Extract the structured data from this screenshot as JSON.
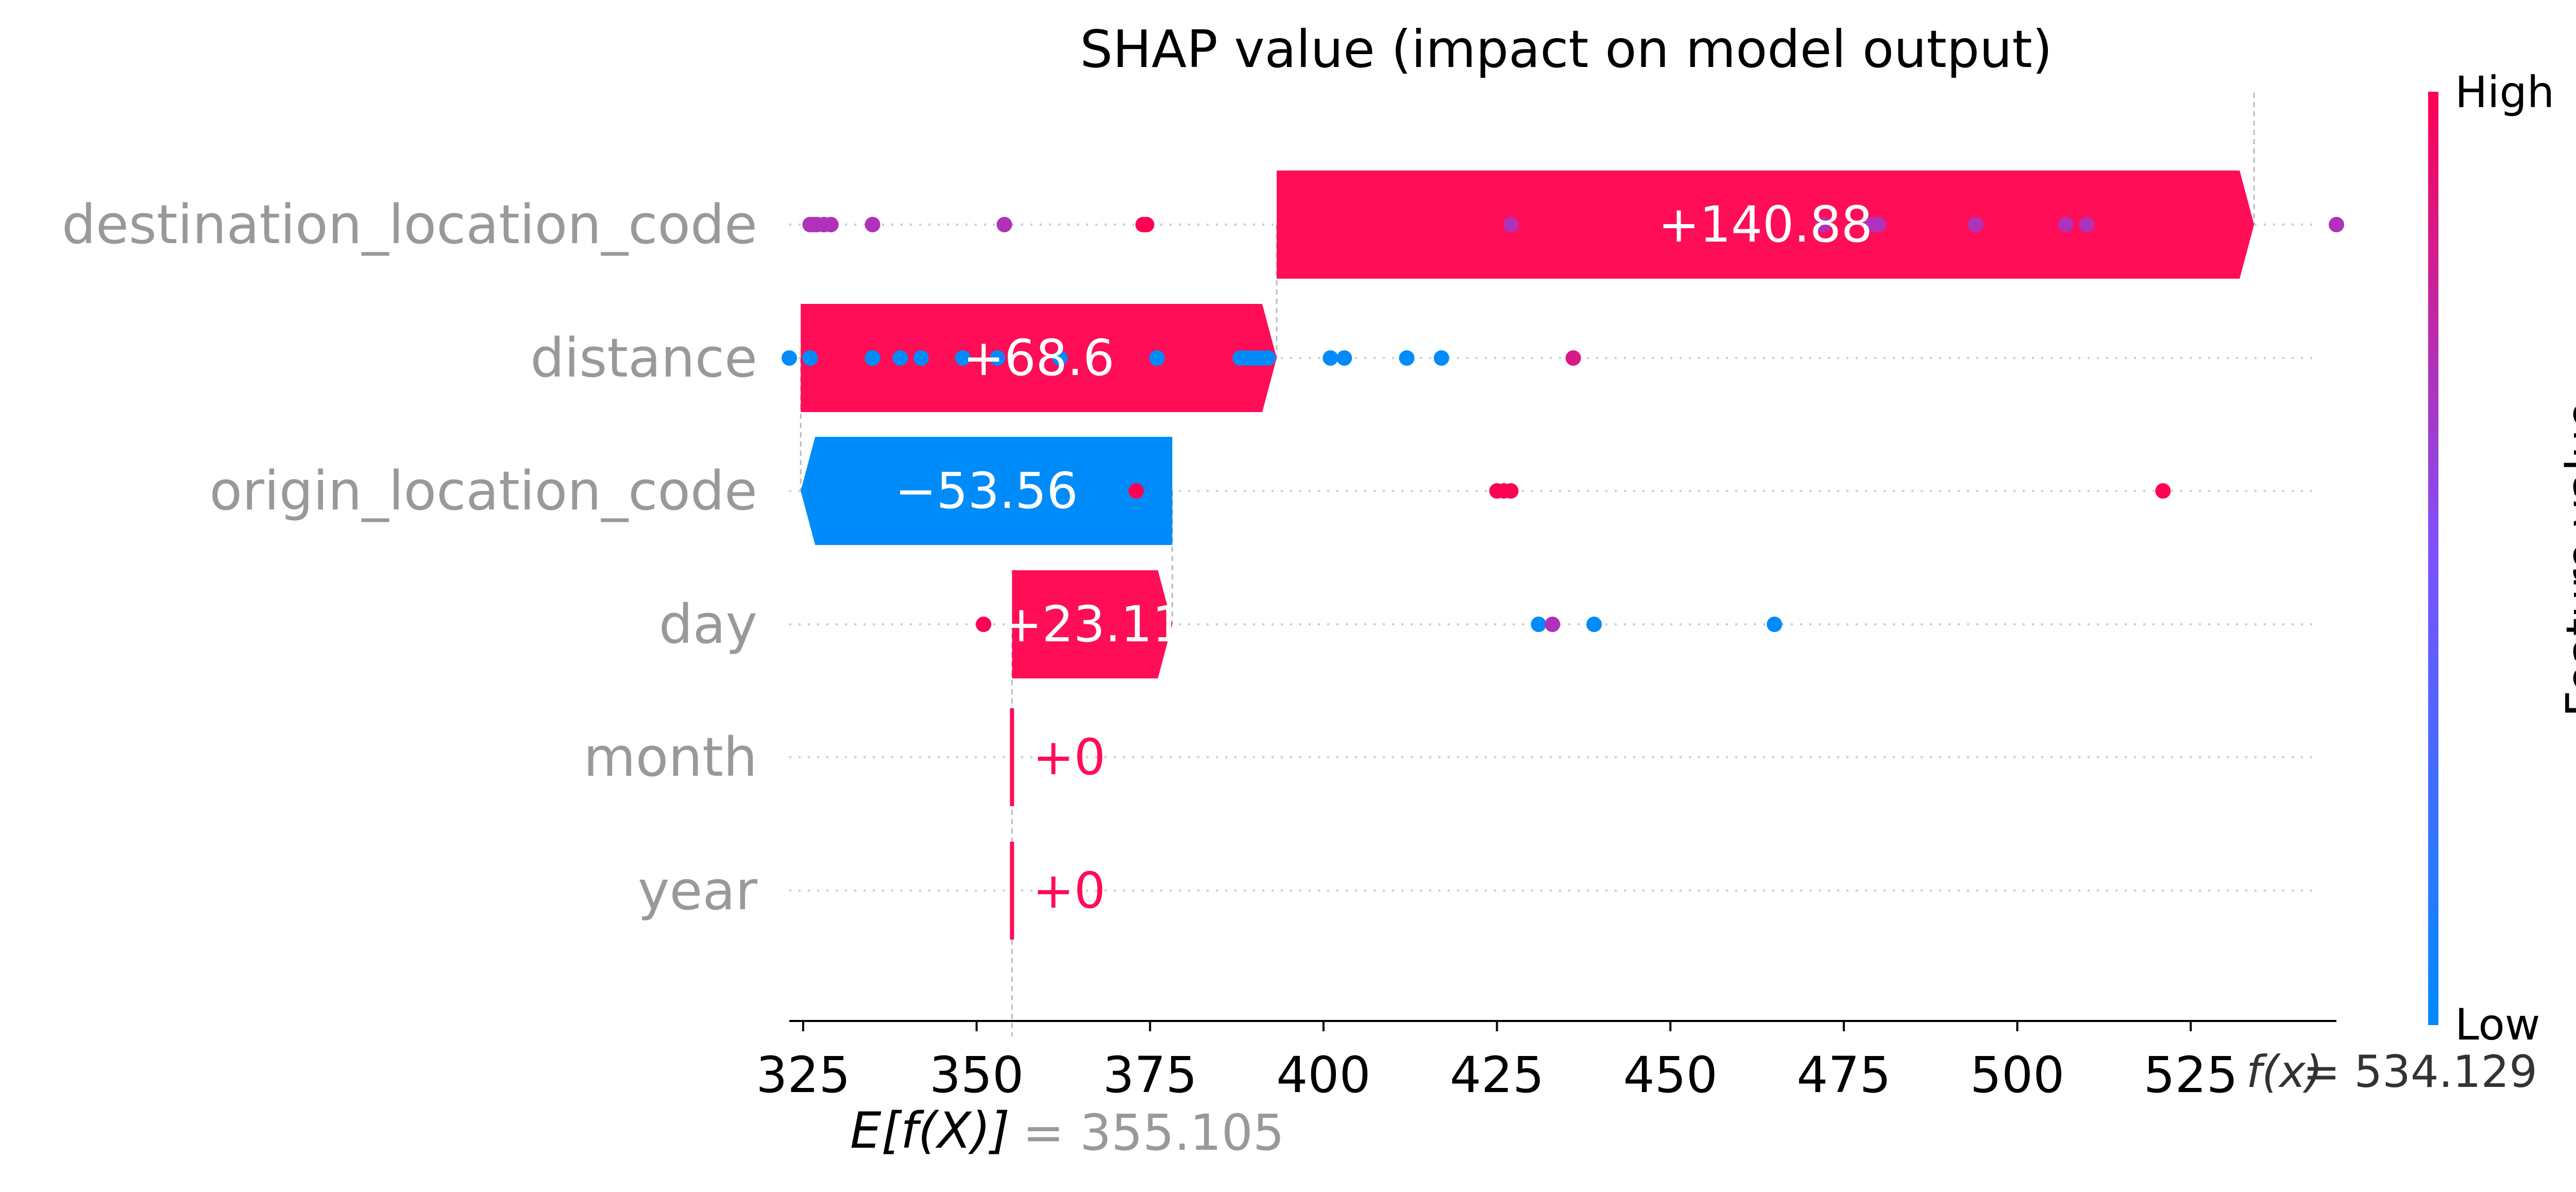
{
  "chart_data": {
    "type": "waterfall",
    "title": "SHAP value (impact on model output)",
    "xlim": [
      323,
      546
    ],
    "x_ticks": [
      "325",
      "350",
      "375",
      "400",
      "425",
      "450",
      "475",
      "500",
      "525"
    ],
    "x_tick_values": [
      325,
      350,
      375,
      400,
      425,
      450,
      475,
      500,
      525
    ],
    "features": [
      "destination_location_code",
      "distance",
      "origin_location_code",
      "day",
      "month",
      "year"
    ],
    "contributions": [
      {
        "feature": "destination_location_code",
        "start": 393.249,
        "end": 534.129,
        "label": "+140.88",
        "sign": "positive"
      },
      {
        "feature": "distance",
        "start": 324.649,
        "end": 393.249,
        "label": "+68.6",
        "sign": "positive"
      },
      {
        "feature": "origin_location_code",
        "start": 378.205,
        "end": 324.649,
        "label": "−53.56",
        "sign": "negative"
      },
      {
        "feature": "day",
        "start": 355.105,
        "end": 378.205,
        "label": "+23.11",
        "sign": "positive"
      },
      {
        "feature": "month",
        "start": 355.105,
        "end": 355.105,
        "label": "+0",
        "sign": "zero"
      },
      {
        "feature": "year",
        "start": 355.105,
        "end": 355.105,
        "label": "+0",
        "sign": "zero"
      }
    ],
    "base_value": {
      "label": "E[f(X)]",
      "value_label": "= 355.105",
      "value": 355.105
    },
    "output_value": {
      "label": "f(x)",
      "value_label": "= 534.129",
      "value": 534.129
    },
    "points": [
      {
        "feature": "destination_location_code",
        "x": [
          326.0,
          326.5,
          327.0,
          328.0,
          329.0,
          335.0,
          354.0,
          374.0,
          374.5,
          427.0,
          472.0,
          479.0,
          480.0,
          494.0,
          507.0,
          510.0,
          546.0
        ],
        "v": [
          0.7,
          0.7,
          0.7,
          0.7,
          0.7,
          0.7,
          0.7,
          1.0,
          1.0,
          0.7,
          0.7,
          0.7,
          0.7,
          0.7,
          0.7,
          0.7,
          0.7
        ]
      },
      {
        "feature": "distance",
        "x": [
          323.0,
          326.0,
          335.0,
          339.0,
          342.0,
          348.0,
          353.0,
          362.0,
          376.0,
          388.0,
          389.0,
          390.0,
          391.0,
          392.0,
          401.0,
          403.0,
          412.0,
          417.0,
          436.0
        ],
        "v": [
          0.0,
          0.0,
          0.0,
          0.0,
          0.0,
          0.0,
          0.0,
          0.0,
          0.0,
          0.0,
          0.0,
          0.0,
          0.0,
          0.0,
          0.0,
          0.0,
          0.0,
          0.0,
          0.85
        ]
      },
      {
        "feature": "origin_location_code",
        "x": [
          373.0,
          425.0,
          426.0,
          427.0,
          521.0
        ],
        "v": [
          1.0,
          1.0,
          1.0,
          1.0,
          1.0
        ]
      },
      {
        "feature": "day",
        "x": [
          351.0,
          431.0,
          433.0,
          439.0,
          465.0
        ],
        "v": [
          1.0,
          0.0,
          0.7,
          0.0,
          0.0
        ]
      }
    ],
    "colorbar": {
      "label": "Feature value",
      "high": "High",
      "low": "Low"
    },
    "colors": {
      "positive": "#ff0d57",
      "negative": "#1e88e5",
      "low": "#008bfb",
      "high": "#ff0052",
      "axis_label": "#999999",
      "grid": "#cccccc",
      "text": "#000000"
    }
  }
}
